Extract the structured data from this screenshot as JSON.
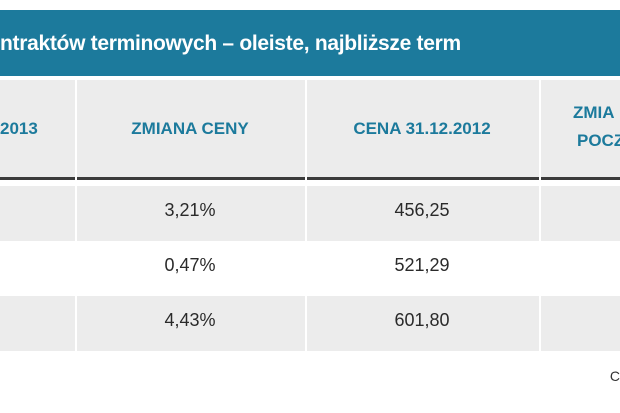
{
  "title": "ntraktów terminowych – oleiste, najbliższe term",
  "table": {
    "headers": [
      "2013",
      "ZMIANA CENY",
      "CENA 31.12.2012",
      [
        "ZMIA",
        "POCZ"
      ]
    ],
    "rows": [
      {
        "change": "3,21%",
        "price": "456,25"
      },
      {
        "change": "0,47%",
        "price": "521,29"
      },
      {
        "change": "4,43%",
        "price": "601,80"
      }
    ]
  },
  "source": "C"
}
